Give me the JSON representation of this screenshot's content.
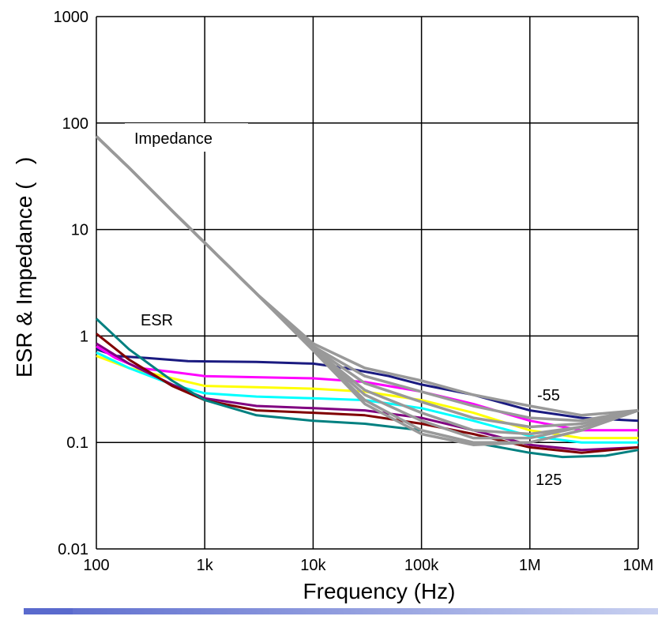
{
  "chart_data": {
    "type": "line",
    "xlabel": "Frequency (Hz)",
    "ylabel": "ESR & Impedance (",
    "ylabel_close": ")",
    "x_scale": "log",
    "y_scale": "log",
    "xlim": [
      100,
      10000000
    ],
    "ylim": [
      0.01,
      1000
    ],
    "grid": true,
    "x_ticks": [
      {
        "value": 100,
        "label": "100"
      },
      {
        "value": 1000,
        "label": "1k"
      },
      {
        "value": 10000,
        "label": "10k"
      },
      {
        "value": 100000,
        "label": "100k"
      },
      {
        "value": 1000000,
        "label": "1M"
      },
      {
        "value": 10000000,
        "label": "10M"
      }
    ],
    "y_ticks": [
      {
        "value": 0.01,
        "label": "0.01"
      },
      {
        "value": 0.1,
        "label": "0.1"
      },
      {
        "value": 1,
        "label": "1"
      },
      {
        "value": 10,
        "label": "10"
      },
      {
        "value": 100,
        "label": "100"
      },
      {
        "value": 1000,
        "label": "1000"
      }
    ],
    "annotations": {
      "impedance": "Impedance",
      "esr": "ESR",
      "low_temp": "-55",
      "high_temp": "125"
    },
    "annotation_colors": {
      "low_temp": "#1a1a80",
      "high_temp": "#008080"
    },
    "esr_series": [
      {
        "color": "#1a1a80",
        "points": [
          [
            100,
            0.75
          ],
          [
            150,
            0.65
          ],
          [
            300,
            0.62
          ],
          [
            700,
            0.58
          ],
          [
            3000,
            0.57
          ],
          [
            10000,
            0.55
          ],
          [
            20000,
            0.5
          ],
          [
            50000,
            0.42
          ],
          [
            100000,
            0.35
          ],
          [
            300000,
            0.28
          ],
          [
            1000000,
            0.2
          ],
          [
            3000000,
            0.17
          ],
          [
            10000000,
            0.16
          ]
        ]
      },
      {
        "color": "#ff00ff",
        "points": [
          [
            100,
            0.8
          ],
          [
            150,
            0.62
          ],
          [
            250,
            0.5
          ],
          [
            500,
            0.46
          ],
          [
            1000,
            0.42
          ],
          [
            3000,
            0.41
          ],
          [
            10000,
            0.4
          ],
          [
            30000,
            0.37
          ],
          [
            100000,
            0.3
          ],
          [
            300000,
            0.23
          ],
          [
            1000000,
            0.16
          ],
          [
            3000000,
            0.13
          ],
          [
            10000000,
            0.13
          ]
        ]
      },
      {
        "color": "#ffff00",
        "points": [
          [
            100,
            0.65
          ],
          [
            200,
            0.5
          ],
          [
            500,
            0.4
          ],
          [
            1000,
            0.34
          ],
          [
            3000,
            0.33
          ],
          [
            10000,
            0.32
          ],
          [
            30000,
            0.3
          ],
          [
            100000,
            0.25
          ],
          [
            300000,
            0.19
          ],
          [
            1000000,
            0.13
          ],
          [
            3000000,
            0.11
          ],
          [
            10000000,
            0.11
          ]
        ]
      },
      {
        "color": "#00ffff",
        "points": [
          [
            100,
            0.7
          ],
          [
            200,
            0.5
          ],
          [
            500,
            0.35
          ],
          [
            1000,
            0.29
          ],
          [
            3000,
            0.27
          ],
          [
            10000,
            0.26
          ],
          [
            30000,
            0.25
          ],
          [
            100000,
            0.21
          ],
          [
            300000,
            0.16
          ],
          [
            1000000,
            0.115
          ],
          [
            3000000,
            0.1
          ],
          [
            10000000,
            0.1
          ]
        ]
      },
      {
        "color": "#800080",
        "points": [
          [
            100,
            0.85
          ],
          [
            200,
            0.55
          ],
          [
            500,
            0.35
          ],
          [
            1000,
            0.26
          ],
          [
            3000,
            0.22
          ],
          [
            10000,
            0.21
          ],
          [
            30000,
            0.2
          ],
          [
            100000,
            0.17
          ],
          [
            300000,
            0.13
          ],
          [
            1000000,
            0.095
          ],
          [
            3000000,
            0.085
          ],
          [
            10000000,
            0.09
          ]
        ]
      },
      {
        "color": "#800000",
        "points": [
          [
            100,
            1.05
          ],
          [
            200,
            0.6
          ],
          [
            500,
            0.34
          ],
          [
            1000,
            0.25
          ],
          [
            3000,
            0.2
          ],
          [
            10000,
            0.19
          ],
          [
            30000,
            0.18
          ],
          [
            100000,
            0.15
          ],
          [
            300000,
            0.12
          ],
          [
            1000000,
            0.09
          ],
          [
            3000000,
            0.08
          ],
          [
            10000000,
            0.09
          ]
        ]
      },
      {
        "color": "#008080",
        "points": [
          [
            100,
            1.45
          ],
          [
            200,
            0.75
          ],
          [
            500,
            0.38
          ],
          [
            1000,
            0.25
          ],
          [
            3000,
            0.18
          ],
          [
            10000,
            0.16
          ],
          [
            30000,
            0.15
          ],
          [
            100000,
            0.13
          ],
          [
            300000,
            0.1
          ],
          [
            1000000,
            0.08
          ],
          [
            2000000,
            0.073
          ],
          [
            5000000,
            0.075
          ],
          [
            10000000,
            0.085
          ]
        ]
      }
    ],
    "impedance_series": [
      {
        "color": "#999999",
        "points": [
          [
            100,
            75
          ],
          [
            200,
            38
          ],
          [
            500,
            15
          ],
          [
            1000,
            7.5
          ],
          [
            3000,
            2.5
          ],
          [
            10000,
            0.85
          ],
          [
            30000,
            0.5
          ],
          [
            100000,
            0.38
          ],
          [
            300000,
            0.28
          ],
          [
            1000000,
            0.22
          ],
          [
            3000000,
            0.18
          ],
          [
            10000000,
            0.2
          ]
        ]
      },
      {
        "color": "#999999",
        "points": [
          [
            100,
            75
          ],
          [
            200,
            38
          ],
          [
            500,
            15
          ],
          [
            1000,
            7.5
          ],
          [
            3000,
            2.5
          ],
          [
            10000,
            0.8
          ],
          [
            30000,
            0.42
          ],
          [
            100000,
            0.3
          ],
          [
            300000,
            0.22
          ],
          [
            1000000,
            0.17
          ],
          [
            3000000,
            0.16
          ],
          [
            10000000,
            0.2
          ]
        ]
      },
      {
        "color": "#999999",
        "points": [
          [
            100,
            75
          ],
          [
            200,
            38
          ],
          [
            500,
            15
          ],
          [
            1000,
            7.5
          ],
          [
            3000,
            2.5
          ],
          [
            10000,
            0.78
          ],
          [
            30000,
            0.36
          ],
          [
            100000,
            0.24
          ],
          [
            300000,
            0.17
          ],
          [
            1000000,
            0.14
          ],
          [
            3000000,
            0.15
          ],
          [
            10000000,
            0.2
          ]
        ]
      },
      {
        "color": "#999999",
        "points": [
          [
            100,
            75
          ],
          [
            200,
            38
          ],
          [
            500,
            15
          ],
          [
            1000,
            7.5
          ],
          [
            3000,
            2.5
          ],
          [
            10000,
            0.76
          ],
          [
            30000,
            0.31
          ],
          [
            100000,
            0.19
          ],
          [
            300000,
            0.13
          ],
          [
            1000000,
            0.12
          ],
          [
            3000000,
            0.14
          ],
          [
            10000000,
            0.2
          ]
        ]
      },
      {
        "color": "#999999",
        "points": [
          [
            100,
            75
          ],
          [
            200,
            38
          ],
          [
            500,
            15
          ],
          [
            1000,
            7.5
          ],
          [
            3000,
            2.5
          ],
          [
            10000,
            0.75
          ],
          [
            30000,
            0.28
          ],
          [
            100000,
            0.16
          ],
          [
            300000,
            0.11
          ],
          [
            1000000,
            0.11
          ],
          [
            3000000,
            0.14
          ],
          [
            10000000,
            0.2
          ]
        ]
      },
      {
        "color": "#999999",
        "points": [
          [
            100,
            75
          ],
          [
            200,
            38
          ],
          [
            500,
            15
          ],
          [
            1000,
            7.5
          ],
          [
            3000,
            2.5
          ],
          [
            10000,
            0.74
          ],
          [
            30000,
            0.25
          ],
          [
            100000,
            0.13
          ],
          [
            300000,
            0.1
          ],
          [
            1000000,
            0.1
          ],
          [
            3000000,
            0.13
          ],
          [
            10000000,
            0.2
          ]
        ]
      },
      {
        "color": "#999999",
        "points": [
          [
            100,
            75
          ],
          [
            200,
            38
          ],
          [
            500,
            15
          ],
          [
            1000,
            7.5
          ],
          [
            3000,
            2.5
          ],
          [
            10000,
            0.73
          ],
          [
            30000,
            0.23
          ],
          [
            100000,
            0.12
          ],
          [
            300000,
            0.095
          ],
          [
            1000000,
            0.1
          ],
          [
            3000000,
            0.13
          ],
          [
            10000000,
            0.2
          ]
        ]
      }
    ]
  },
  "colors": {
    "grid": "#000000",
    "impedance_line": "#999999",
    "bottom_bar_start": "#5a6acd",
    "bottom_bar_end": "#c8d0f0"
  }
}
